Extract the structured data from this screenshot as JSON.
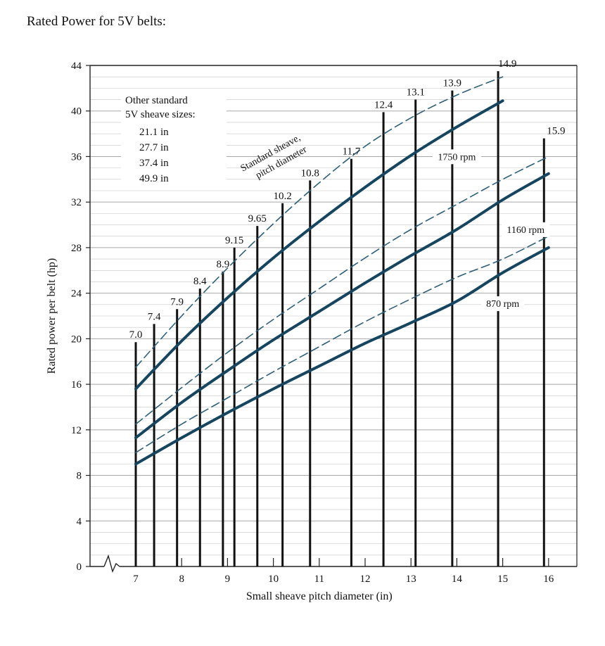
{
  "page": {
    "heading": "Rated Power for 5V belts:"
  },
  "chart_data": {
    "type": "line",
    "title": "",
    "xlabel": "Small sheave pitch diameter (in)",
    "ylabel": "Rated power per belt (hp)",
    "xlim": [
      6.0,
      16.5
    ],
    "ylim": [
      0,
      44
    ],
    "x_ticks": [
      "7",
      "8",
      "9",
      "10",
      "11",
      "12",
      "13",
      "14",
      "15",
      "16"
    ],
    "y_ticks": [
      "0",
      "4",
      "8",
      "12",
      "16",
      "20",
      "24",
      "28",
      "32",
      "36",
      "40",
      "44"
    ],
    "axis_break": true,
    "grid": "horizontal",
    "annotation_title": "Standard sheave, pitch diameter",
    "other_sizes": {
      "title": "Other standard 5V sheave sizes:",
      "sizes": [
        "21.1 in",
        "27.7 in",
        "37.4 in",
        "49.9 in"
      ]
    },
    "standard_sheaves": [
      {
        "label": "7.0",
        "x": 7.0,
        "top": 19.7
      },
      {
        "label": "7.4",
        "x": 7.4,
        "top": 21.3
      },
      {
        "label": "7.9",
        "x": 7.9,
        "top": 22.6
      },
      {
        "label": "8.4",
        "x": 8.4,
        "top": 24.4
      },
      {
        "label": "8.9",
        "x": 8.9,
        "top": 25.9
      },
      {
        "label": "9.15",
        "x": 9.15,
        "top": 28.0
      },
      {
        "label": "9.65",
        "x": 9.65,
        "top": 29.9
      },
      {
        "label": "10.2",
        "x": 10.2,
        "top": 31.9
      },
      {
        "label": "10.8",
        "x": 10.8,
        "top": 33.9
      },
      {
        "label": "11.7",
        "x": 11.7,
        "top": 35.8
      },
      {
        "label": "12.4",
        "x": 12.4,
        "top": 39.9
      },
      {
        "label": "13.1",
        "x": 13.1,
        "top": 41.0
      },
      {
        "label": "13.9",
        "x": 13.9,
        "top": 41.8
      },
      {
        "label": "14.9",
        "x": 14.9,
        "top": 43.5
      },
      {
        "label": "15.9",
        "x": 15.9,
        "top": 37.6
      }
    ],
    "series": [
      {
        "name": "1750 rpm",
        "style": "solid",
        "x": [
          7,
          8,
          9,
          10,
          11,
          12,
          13,
          14,
          15
        ],
        "y": [
          15.6,
          19.8,
          23.6,
          27.1,
          30.3,
          33.3,
          36.1,
          38.6,
          40.9
        ]
      },
      {
        "name": "1750 rpm (dashed)",
        "style": "dashed",
        "x": [
          7,
          8,
          9,
          10,
          11,
          12,
          13,
          14,
          15
        ],
        "y": [
          17.5,
          22.0,
          26.2,
          30.1,
          33.7,
          36.9,
          39.4,
          41.4,
          43.0
        ]
      },
      {
        "name": "1160 rpm",
        "style": "solid",
        "x": [
          7,
          8,
          9,
          10,
          11,
          12,
          13,
          14,
          15,
          16
        ],
        "y": [
          11.3,
          14.4,
          17.2,
          19.9,
          22.4,
          24.9,
          27.3,
          29.6,
          32.2,
          34.5
        ]
      },
      {
        "name": "1160 rpm (dashed)",
        "style": "dashed",
        "x": [
          7,
          8,
          9,
          10,
          11,
          12,
          13,
          14,
          15,
          16
        ],
        "y": [
          12.5,
          15.7,
          18.8,
          21.7,
          24.4,
          27.1,
          29.6,
          31.8,
          34.0,
          36.0
        ]
      },
      {
        "name": "870 rpm",
        "style": "solid",
        "x": [
          7,
          8,
          9,
          10,
          11,
          12,
          13,
          14,
          15,
          16
        ],
        "y": [
          9.0,
          11.3,
          13.5,
          15.6,
          17.6,
          19.6,
          21.4,
          23.3,
          25.8,
          28.0
        ]
      },
      {
        "name": "870 rpm (dashed)",
        "style": "dashed",
        "x": [
          7,
          8,
          9,
          10,
          11,
          12,
          13,
          14,
          15,
          16
        ],
        "y": [
          10.0,
          12.5,
          14.8,
          17.1,
          19.3,
          21.5,
          23.5,
          25.4,
          27.0,
          29.0
        ]
      }
    ],
    "curve_labels": [
      {
        "text": "1750 rpm",
        "x": 14.0,
        "y": 35.7
      },
      {
        "text": "1160 rpm",
        "x": 15.5,
        "y": 29.3
      },
      {
        "text": "870 rpm",
        "x": 15.0,
        "y": 22.8
      }
    ],
    "colors": {
      "solid": "#16455f",
      "dashed": "#2d5f7a",
      "bars": "#111111",
      "grid": "#c4c4c4"
    }
  }
}
